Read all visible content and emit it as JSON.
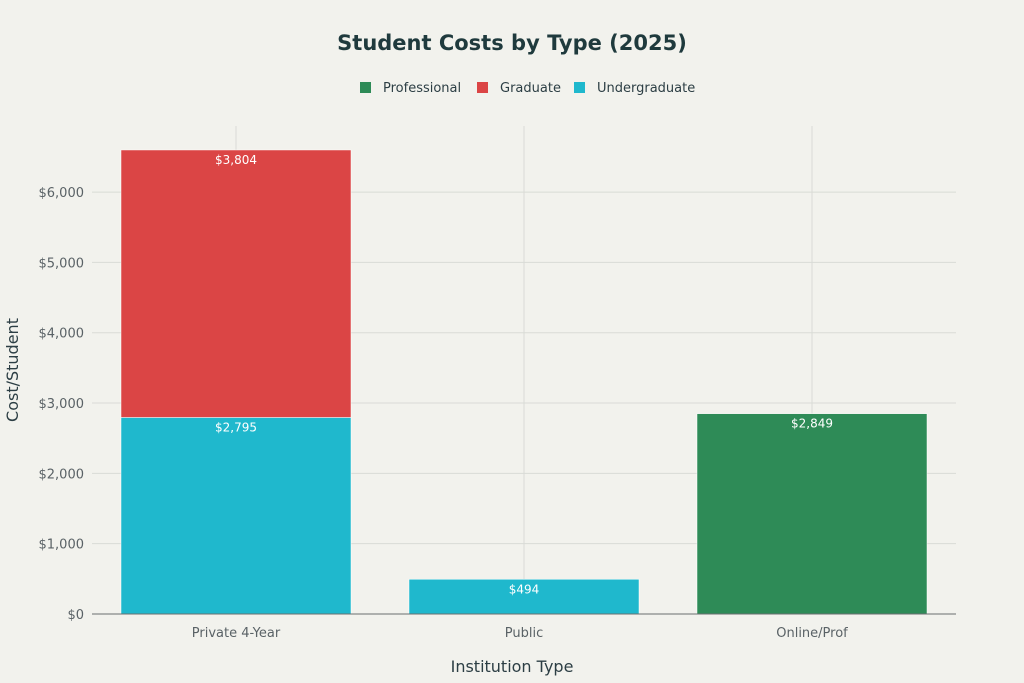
{
  "chart_data": {
    "type": "bar",
    "stacked": true,
    "title": "Student Costs by Type (2025)",
    "xlabel": "Institution Type",
    "ylabel": "Cost/Student",
    "categories": [
      "Private 4-Year",
      "Public",
      "Online/Prof"
    ],
    "series": [
      {
        "name": "Undergraduate",
        "color": "#1fb8cd",
        "values": [
          2795,
          494,
          null
        ],
        "labels": [
          "$2,795",
          "$494",
          ""
        ]
      },
      {
        "name": "Graduate",
        "color": "#db4545",
        "values": [
          3804,
          null,
          null
        ],
        "labels": [
          "$3,804",
          "",
          ""
        ]
      },
      {
        "name": "Professional",
        "color": "#2e8b57",
        "values": [
          null,
          null,
          2849
        ],
        "labels": [
          "",
          "",
          "$2,849"
        ]
      }
    ],
    "legend_order": [
      "Professional",
      "Graduate",
      "Undergraduate"
    ],
    "legend_position": "top-center",
    "yticks": [
      0,
      1000,
      2000,
      3000,
      4000,
      5000,
      6000
    ],
    "ytick_labels": [
      "$0",
      "$1,000",
      "$2,000",
      "$3,000",
      "$4,000",
      "$5,000",
      "$6,000"
    ],
    "ylim": [
      0,
      6940
    ],
    "grid": true
  }
}
